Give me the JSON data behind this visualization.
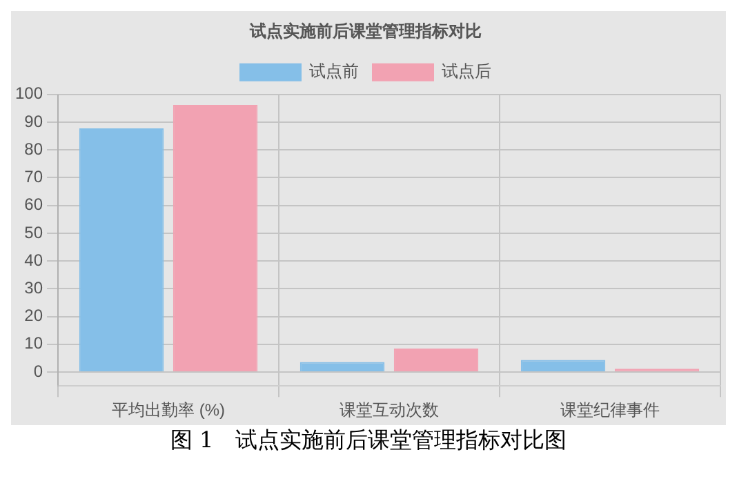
{
  "chart_data": {
    "type": "bar",
    "title": "试点实施前后课堂管理指标对比",
    "categories": [
      "平均出勤率 (%)",
      "课堂互动次数",
      "课堂纪律事件"
    ],
    "series": [
      {
        "name": "试点前",
        "color": "#85bfe8",
        "values": [
          87.8,
          3.6,
          4.4
        ]
      },
      {
        "name": "试点后",
        "color": "#f2a2b2",
        "values": [
          96.2,
          8.5,
          1.2
        ]
      }
    ],
    "ylim": [
      -5,
      100
    ],
    "yticks": [
      0,
      10,
      20,
      30,
      40,
      50,
      60,
      70,
      80,
      90,
      100
    ],
    "grid": true,
    "legend": "top",
    "annotations": [
      "图 1　试点实施前后课堂管理指标对比图"
    ]
  }
}
